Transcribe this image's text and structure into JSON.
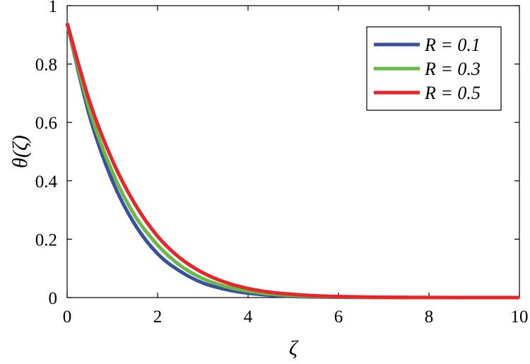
{
  "chart_data": {
    "type": "line",
    "title": "",
    "xlabel": "ζ",
    "ylabel": "θ(ζ)",
    "xlim": [
      0,
      10
    ],
    "ylim": [
      0,
      1
    ],
    "x_ticks": [
      0,
      2,
      4,
      6,
      8,
      10
    ],
    "y_ticks": [
      0,
      0.2,
      0.4,
      0.6,
      0.8,
      1
    ],
    "x_tick_labels": [
      "0",
      "2",
      "4",
      "6",
      "8",
      "10"
    ],
    "y_tick_labels": [
      "0",
      "0.2",
      "0.4",
      "0.6",
      "0.8",
      "1"
    ],
    "grid": false,
    "legend_position": "top-right",
    "x": [
      0,
      0.5,
      1,
      1.5,
      2,
      2.5,
      3,
      3.5,
      4,
      4.5,
      5,
      5.5,
      6,
      6.5,
      7,
      7.5,
      8,
      8.5,
      9,
      9.5,
      10
    ],
    "series": [
      {
        "name": "R = 0.1",
        "color": "#3a4fa0",
        "values": [
          0.94,
          0.62,
          0.4,
          0.25,
          0.15,
          0.09,
          0.05,
          0.028,
          0.015,
          0.008,
          0.004,
          0.002,
          0.001,
          0.0005,
          0.0002,
          0.0001,
          0,
          0,
          0,
          0,
          0
        ]
      },
      {
        "name": "R = 0.3",
        "color": "#6ab845",
        "values": [
          0.94,
          0.64,
          0.43,
          0.28,
          0.18,
          0.11,
          0.065,
          0.038,
          0.022,
          0.012,
          0.007,
          0.004,
          0.002,
          0.001,
          0.0006,
          0.0003,
          0.0001,
          0,
          0,
          0,
          0
        ]
      },
      {
        "name": "R = 0.5",
        "color": "#e8262a",
        "values": [
          0.94,
          0.67,
          0.47,
          0.32,
          0.21,
          0.135,
          0.085,
          0.052,
          0.031,
          0.018,
          0.011,
          0.006,
          0.0035,
          0.002,
          0.0011,
          0.0006,
          0.0003,
          0.0001,
          0,
          0,
          0
        ]
      }
    ]
  }
}
